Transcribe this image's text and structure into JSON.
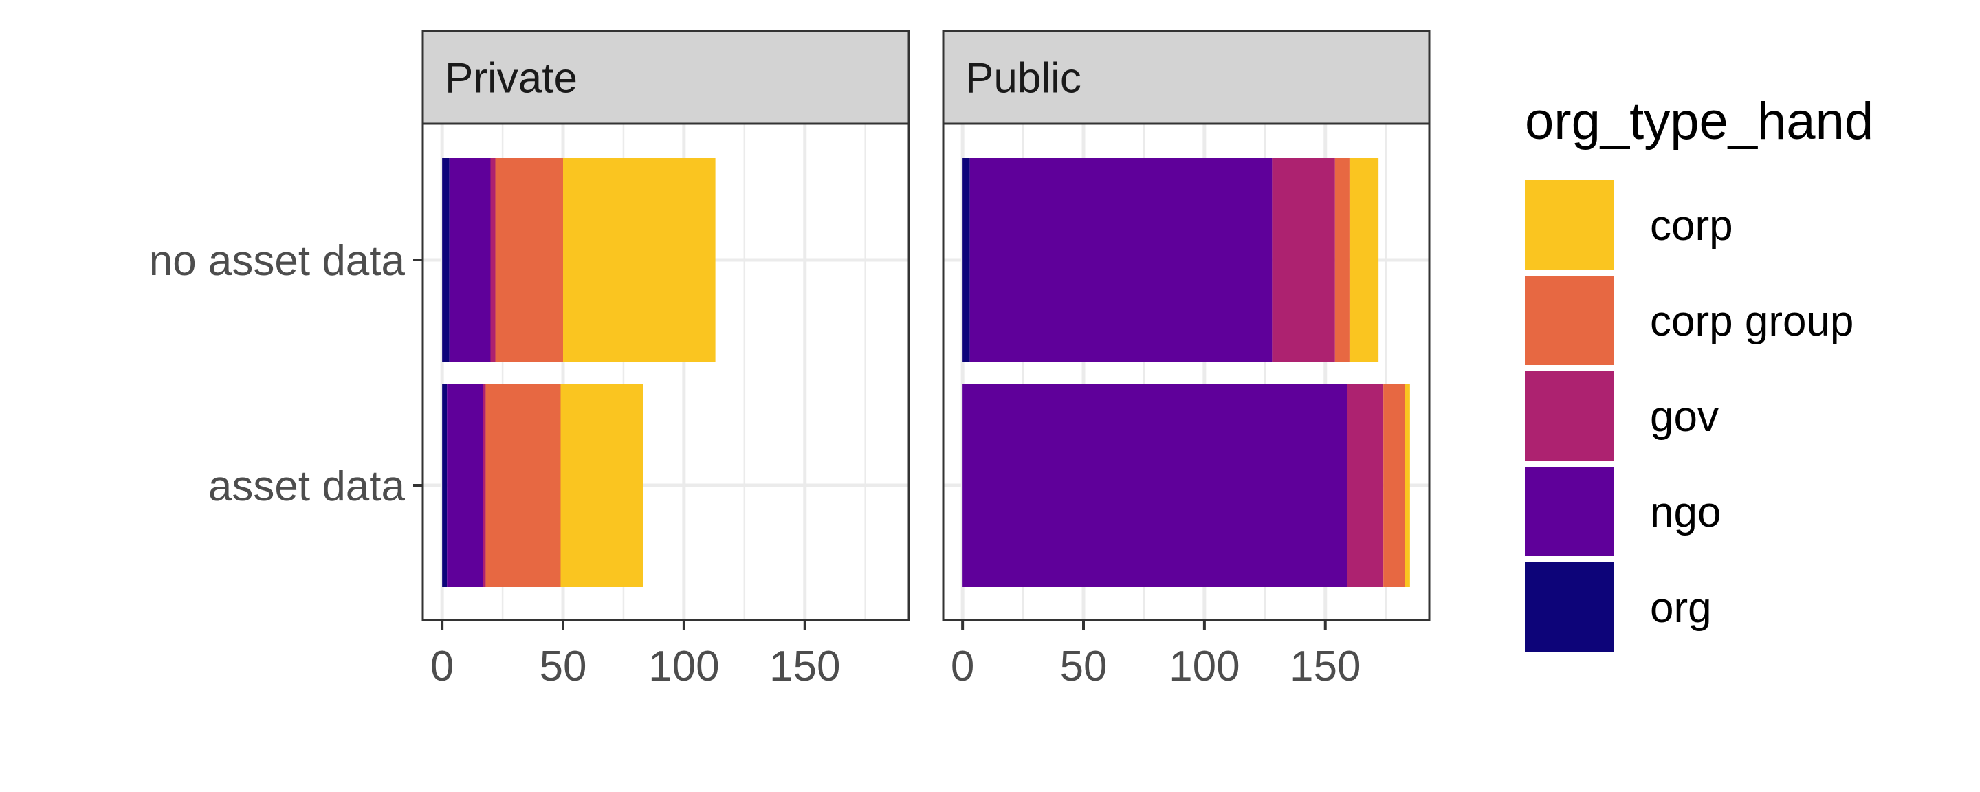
{
  "chart_data": {
    "type": "bar",
    "orientation": "horizontal",
    "stacked": true,
    "facets": [
      "Private",
      "Public"
    ],
    "categories": [
      "no asset data",
      "asset data"
    ],
    "xlim": [
      -8,
      193
    ],
    "x_breaks": [
      0,
      50,
      100,
      150
    ],
    "x_tick_labels": [
      "0",
      "50",
      "100",
      "150"
    ],
    "legend": {
      "title": "org_type_hand",
      "placement": "right",
      "entries": [
        "corp",
        "corp group",
        "gov",
        "ngo",
        "org"
      ]
    },
    "stack_order": [
      "org",
      "ngo",
      "gov",
      "corp group",
      "corp"
    ],
    "colors": {
      "corp": "#FAC520",
      "corp group": "#E76842",
      "gov": "#AD2270",
      "ngo": "#5F009A",
      "org": "#0D0479"
    },
    "grid": true,
    "panels": [
      {
        "facet": "Private",
        "series": [
          {
            "name": "org",
            "values": [
              3,
              2
            ]
          },
          {
            "name": "ngo",
            "values": [
              17,
              15
            ]
          },
          {
            "name": "gov",
            "values": [
              2,
              1
            ]
          },
          {
            "name": "corp group",
            "values": [
              28,
              31
            ]
          },
          {
            "name": "corp",
            "values": [
              63,
              34
            ]
          }
        ]
      },
      {
        "facet": "Public",
        "series": [
          {
            "name": "org",
            "values": [
              3,
              0
            ]
          },
          {
            "name": "ngo",
            "values": [
              125,
              159
            ]
          },
          {
            "name": "gov",
            "values": [
              26,
              15
            ]
          },
          {
            "name": "corp group",
            "values": [
              6,
              9
            ]
          },
          {
            "name": "corp",
            "values": [
              12,
              2
            ]
          }
        ]
      }
    ]
  }
}
